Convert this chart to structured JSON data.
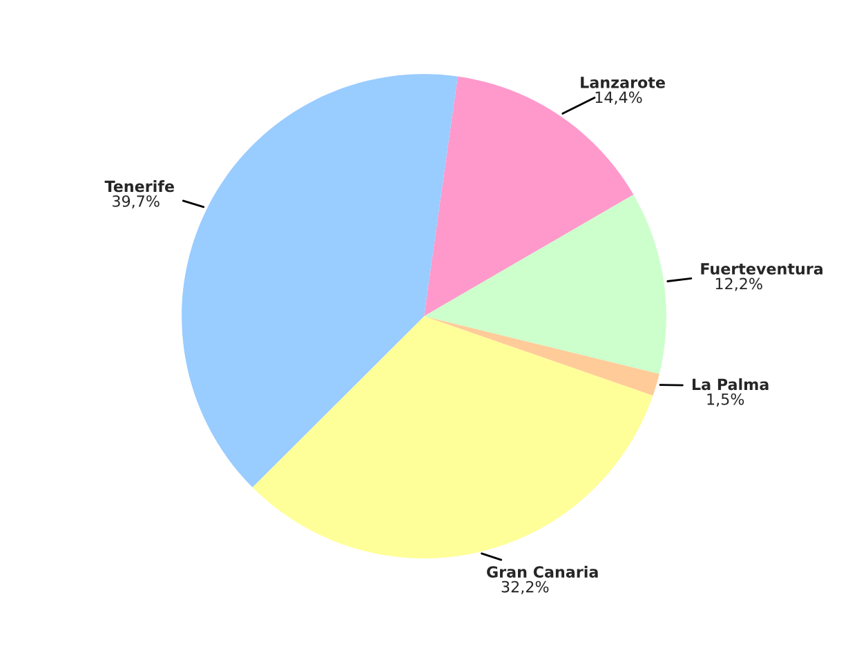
{
  "chart_data": {
    "type": "pie",
    "categories": [
      "Lanzarote",
      "Fuerteventura",
      "La Palma",
      "Gran Canaria",
      "Tenerife"
    ],
    "values": [
      14.4,
      12.2,
      1.5,
      32.2,
      39.7
    ],
    "value_labels": [
      "14,4%",
      "12,2%",
      "1,5%",
      "32,2%",
      "39,7%"
    ],
    "colors": [
      "#ff99cc",
      "#ccffcc",
      "#ffcc99",
      "#ffff99",
      "#99ccff"
    ],
    "legend": false
  }
}
